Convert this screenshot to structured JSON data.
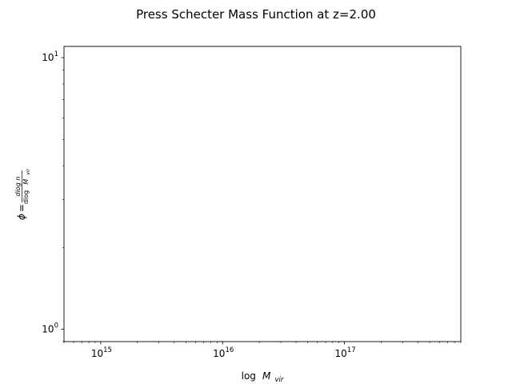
{
  "chart_data": {
    "type": "line",
    "title": "Press Schecter Mass Function at z=2.00",
    "xlabel": {
      "prefix": "log",
      "symbol": "M",
      "subscript": "vir"
    },
    "ylabel": {
      "symbol": "ϕ",
      "equals": "=",
      "numerator": "dlog n",
      "denominator_prefix": "dlog",
      "denominator_symbol": "M",
      "denominator_subscript": "vir"
    },
    "x_scale": "log",
    "y_scale": "log",
    "xlim": [
      500000000000000.0,
      9e+17
    ],
    "ylim": [
      0.9,
      11
    ],
    "x_major_ticks": [
      {
        "value": 1000000000000000.0,
        "base": "10",
        "exp": "15"
      },
      {
        "value": 1e+16,
        "base": "10",
        "exp": "16"
      },
      {
        "value": 1e+17,
        "base": "10",
        "exp": "17"
      }
    ],
    "y_major_ticks": [
      {
        "value": 1,
        "base": "10",
        "exp": "0"
      },
      {
        "value": 10,
        "base": "10",
        "exp": "1"
      }
    ],
    "grid": false,
    "series": []
  }
}
